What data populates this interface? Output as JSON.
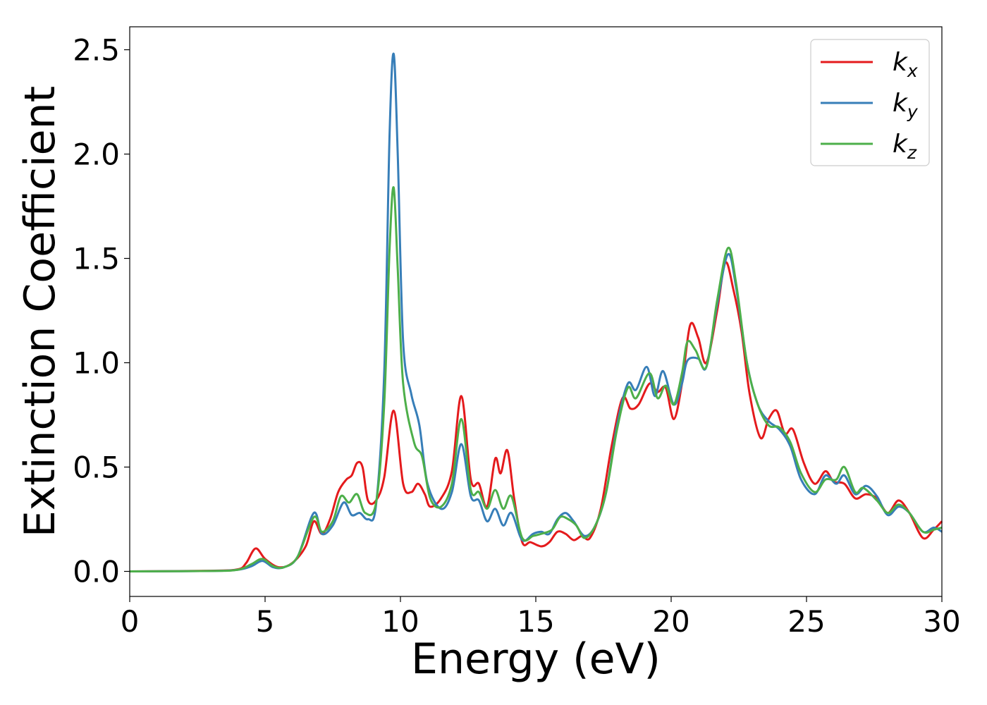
{
  "chart_data": {
    "type": "line",
    "xlabel": "Energy (eV)",
    "ylabel": "Extinction Coefficient",
    "xlim": [
      0,
      30
    ],
    "ylim": [
      -0.12,
      2.61
    ],
    "x_ticks": [
      "0",
      "5",
      "10",
      "15",
      "20",
      "25",
      "30"
    ],
    "y_ticks": [
      "0.0",
      "0.5",
      "1.0",
      "1.5",
      "2.0",
      "2.5"
    ],
    "grid": false,
    "legend_position": "top-right",
    "series": [
      {
        "name": "kx",
        "legend_main": "k",
        "legend_sub": "x",
        "color": "#e41a1c",
        "points": [
          [
            0,
            0
          ],
          [
            3,
            0.003
          ],
          [
            4,
            0.01
          ],
          [
            4.3,
            0.04
          ],
          [
            4.65,
            0.11
          ],
          [
            5,
            0.06
          ],
          [
            5.5,
            0.02
          ],
          [
            6,
            0.04
          ],
          [
            6.5,
            0.12
          ],
          [
            6.8,
            0.24
          ],
          [
            7.1,
            0.18
          ],
          [
            7.4,
            0.25
          ],
          [
            7.7,
            0.38
          ],
          [
            8,
            0.44
          ],
          [
            8.2,
            0.46
          ],
          [
            8.4,
            0.52
          ],
          [
            8.6,
            0.5
          ],
          [
            8.8,
            0.34
          ],
          [
            9.1,
            0.34
          ],
          [
            9.4,
            0.45
          ],
          [
            9.75,
            0.77
          ],
          [
            10.1,
            0.42
          ],
          [
            10.4,
            0.38
          ],
          [
            10.65,
            0.42
          ],
          [
            10.9,
            0.37
          ],
          [
            11.1,
            0.31
          ],
          [
            11.5,
            0.35
          ],
          [
            11.9,
            0.48
          ],
          [
            12.25,
            0.84
          ],
          [
            12.6,
            0.44
          ],
          [
            12.9,
            0.42
          ],
          [
            13.2,
            0.31
          ],
          [
            13.5,
            0.54
          ],
          [
            13.7,
            0.47
          ],
          [
            13.95,
            0.58
          ],
          [
            14.2,
            0.35
          ],
          [
            14.5,
            0.14
          ],
          [
            14.8,
            0.14
          ],
          [
            15.2,
            0.12
          ],
          [
            15.5,
            0.14
          ],
          [
            15.8,
            0.19
          ],
          [
            16.1,
            0.18
          ],
          [
            16.4,
            0.15
          ],
          [
            16.7,
            0.17
          ],
          [
            17,
            0.16
          ],
          [
            17.4,
            0.3
          ],
          [
            17.8,
            0.6
          ],
          [
            18.2,
            0.83
          ],
          [
            18.5,
            0.78
          ],
          [
            18.8,
            0.8
          ],
          [
            19.2,
            0.9
          ],
          [
            19.5,
            0.86
          ],
          [
            19.8,
            0.88
          ],
          [
            20.1,
            0.73
          ],
          [
            20.4,
            0.9
          ],
          [
            20.7,
            1.18
          ],
          [
            21,
            1.12
          ],
          [
            21.3,
            1.0
          ],
          [
            21.7,
            1.25
          ],
          [
            22,
            1.48
          ],
          [
            22.3,
            1.35
          ],
          [
            22.6,
            1.15
          ],
          [
            22.9,
            0.85
          ],
          [
            23.3,
            0.64
          ],
          [
            23.6,
            0.73
          ],
          [
            23.9,
            0.77
          ],
          [
            24.2,
            0.66
          ],
          [
            24.5,
            0.68
          ],
          [
            24.9,
            0.52
          ],
          [
            25.3,
            0.42
          ],
          [
            25.7,
            0.48
          ],
          [
            26,
            0.43
          ],
          [
            26.4,
            0.42
          ],
          [
            26.8,
            0.35
          ],
          [
            27.2,
            0.37
          ],
          [
            27.6,
            0.35
          ],
          [
            28,
            0.28
          ],
          [
            28.4,
            0.34
          ],
          [
            28.8,
            0.28
          ],
          [
            29.3,
            0.16
          ],
          [
            29.7,
            0.2
          ],
          [
            30,
            0.24
          ]
        ]
      },
      {
        "name": "ky",
        "legend_main": "k",
        "legend_sub": "y",
        "color": "#377eb8",
        "points": [
          [
            0,
            0
          ],
          [
            3,
            0.002
          ],
          [
            4,
            0.008
          ],
          [
            4.5,
            0.025
          ],
          [
            4.9,
            0.05
          ],
          [
            5.3,
            0.02
          ],
          [
            5.7,
            0.02
          ],
          [
            6.2,
            0.07
          ],
          [
            6.8,
            0.28
          ],
          [
            7.1,
            0.18
          ],
          [
            7.5,
            0.22
          ],
          [
            7.9,
            0.33
          ],
          [
            8.2,
            0.27
          ],
          [
            8.5,
            0.28
          ],
          [
            8.8,
            0.25
          ],
          [
            9.1,
            0.32
          ],
          [
            9.4,
            0.95
          ],
          [
            9.6,
            2.1
          ],
          [
            9.75,
            2.48
          ],
          [
            9.9,
            2.0
          ],
          [
            10.1,
            1.1
          ],
          [
            10.4,
            0.85
          ],
          [
            10.7,
            0.7
          ],
          [
            11,
            0.42
          ],
          [
            11.5,
            0.3
          ],
          [
            11.9,
            0.38
          ],
          [
            12.25,
            0.61
          ],
          [
            12.6,
            0.36
          ],
          [
            12.9,
            0.34
          ],
          [
            13.2,
            0.24
          ],
          [
            13.5,
            0.3
          ],
          [
            13.8,
            0.22
          ],
          [
            14.1,
            0.28
          ],
          [
            14.5,
            0.15
          ],
          [
            14.9,
            0.18
          ],
          [
            15.2,
            0.19
          ],
          [
            15.5,
            0.18
          ],
          [
            15.8,
            0.25
          ],
          [
            16.1,
            0.28
          ],
          [
            16.4,
            0.24
          ],
          [
            16.8,
            0.17
          ],
          [
            17.2,
            0.22
          ],
          [
            17.6,
            0.38
          ],
          [
            18,
            0.7
          ],
          [
            18.4,
            0.9
          ],
          [
            18.7,
            0.87
          ],
          [
            19.1,
            0.98
          ],
          [
            19.4,
            0.84
          ],
          [
            19.7,
            0.96
          ],
          [
            20.1,
            0.8
          ],
          [
            20.4,
            0.9
          ],
          [
            20.6,
            1.01
          ],
          [
            21,
            1.02
          ],
          [
            21.3,
            0.98
          ],
          [
            21.7,
            1.28
          ],
          [
            22.1,
            1.52
          ],
          [
            22.4,
            1.36
          ],
          [
            22.8,
            1.0
          ],
          [
            23.2,
            0.8
          ],
          [
            23.6,
            0.72
          ],
          [
            24,
            0.68
          ],
          [
            24.4,
            0.6
          ],
          [
            24.8,
            0.44
          ],
          [
            25.3,
            0.37
          ],
          [
            25.7,
            0.46
          ],
          [
            26.1,
            0.42
          ],
          [
            26.4,
            0.46
          ],
          [
            26.8,
            0.37
          ],
          [
            27.2,
            0.41
          ],
          [
            27.6,
            0.36
          ],
          [
            28,
            0.27
          ],
          [
            28.4,
            0.31
          ],
          [
            28.8,
            0.28
          ],
          [
            29.3,
            0.19
          ],
          [
            29.7,
            0.21
          ],
          [
            30,
            0.19
          ]
        ]
      },
      {
        "name": "kz",
        "legend_main": "k",
        "legend_sub": "z",
        "color": "#4daf4a",
        "points": [
          [
            0,
            0
          ],
          [
            3,
            0.002
          ],
          [
            4,
            0.008
          ],
          [
            4.5,
            0.035
          ],
          [
            4.9,
            0.06
          ],
          [
            5.3,
            0.025
          ],
          [
            5.7,
            0.02
          ],
          [
            6.2,
            0.07
          ],
          [
            6.8,
            0.26
          ],
          [
            7.1,
            0.19
          ],
          [
            7.5,
            0.24
          ],
          [
            7.8,
            0.36
          ],
          [
            8.1,
            0.33
          ],
          [
            8.4,
            0.37
          ],
          [
            8.7,
            0.28
          ],
          [
            9.1,
            0.33
          ],
          [
            9.4,
            0.8
          ],
          [
            9.6,
            1.55
          ],
          [
            9.75,
            1.84
          ],
          [
            9.9,
            1.45
          ],
          [
            10.1,
            0.9
          ],
          [
            10.5,
            0.62
          ],
          [
            10.8,
            0.55
          ],
          [
            11.1,
            0.35
          ],
          [
            11.5,
            0.31
          ],
          [
            11.9,
            0.42
          ],
          [
            12.25,
            0.73
          ],
          [
            12.6,
            0.39
          ],
          [
            12.9,
            0.38
          ],
          [
            13.2,
            0.3
          ],
          [
            13.5,
            0.39
          ],
          [
            13.8,
            0.3
          ],
          [
            14.1,
            0.36
          ],
          [
            14.5,
            0.16
          ],
          [
            14.9,
            0.17
          ],
          [
            15.2,
            0.18
          ],
          [
            15.6,
            0.2
          ],
          [
            15.9,
            0.26
          ],
          [
            16.2,
            0.25
          ],
          [
            16.5,
            0.22
          ],
          [
            16.8,
            0.16
          ],
          [
            17.2,
            0.22
          ],
          [
            17.6,
            0.38
          ],
          [
            18,
            0.68
          ],
          [
            18.4,
            0.88
          ],
          [
            18.7,
            0.83
          ],
          [
            19.2,
            0.95
          ],
          [
            19.5,
            0.83
          ],
          [
            19.8,
            0.89
          ],
          [
            20.1,
            0.8
          ],
          [
            20.4,
            0.95
          ],
          [
            20.6,
            1.1
          ],
          [
            20.9,
            1.06
          ],
          [
            21.3,
            0.98
          ],
          [
            21.7,
            1.3
          ],
          [
            22.1,
            1.55
          ],
          [
            22.4,
            1.38
          ],
          [
            22.8,
            1.0
          ],
          [
            23.2,
            0.8
          ],
          [
            23.6,
            0.7
          ],
          [
            24,
            0.69
          ],
          [
            24.4,
            0.62
          ],
          [
            24.8,
            0.47
          ],
          [
            25.3,
            0.38
          ],
          [
            25.7,
            0.44
          ],
          [
            26.1,
            0.44
          ],
          [
            26.4,
            0.5
          ],
          [
            26.8,
            0.38
          ],
          [
            27.1,
            0.4
          ],
          [
            27.6,
            0.34
          ],
          [
            28,
            0.28
          ],
          [
            28.4,
            0.32
          ],
          [
            28.8,
            0.28
          ],
          [
            29.3,
            0.19
          ],
          [
            29.7,
            0.2
          ],
          [
            30,
            0.21
          ]
        ]
      }
    ]
  }
}
